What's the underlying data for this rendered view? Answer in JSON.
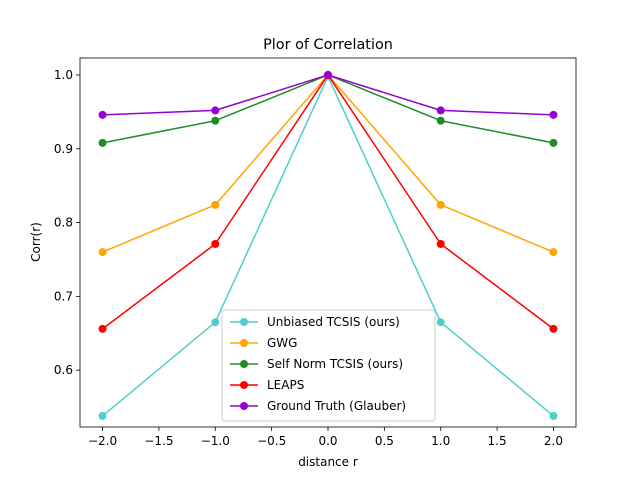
{
  "chart_data": {
    "type": "line",
    "title": "Plor of Correlation",
    "xlabel": "distance r",
    "ylabel": "Corr(r)",
    "x": [
      -2.0,
      -1.0,
      0.0,
      1.0,
      2.0
    ],
    "xlim": [
      -2.2,
      2.2
    ],
    "ylim": [
      0.523,
      1.023
    ],
    "xticks": [
      -2.0,
      -1.5,
      -1.0,
      -0.5,
      0.0,
      0.5,
      1.0,
      1.5,
      2.0
    ],
    "xtick_labels": [
      "−2.0",
      "−1.5",
      "−1.0",
      "−0.5",
      "0.0",
      "0.5",
      "1.0",
      "1.5",
      "2.0"
    ],
    "yticks": [
      0.6,
      0.7,
      0.8,
      0.9,
      1.0
    ],
    "ytick_labels": [
      "0.6",
      "0.7",
      "0.8",
      "0.9",
      "1.0"
    ],
    "grid": false,
    "legend_position": "lower center",
    "series": [
      {
        "name": "Unbiased TCSIS (ours)",
        "color": "#4ecfcb",
        "values": [
          0.538,
          0.665,
          0.998,
          0.665,
          0.538
        ]
      },
      {
        "name": "GWG",
        "color": "#ffa500",
        "values": [
          0.76,
          0.824,
          1.0,
          0.824,
          0.76
        ]
      },
      {
        "name": "Self Norm TCSIS (ours)",
        "color": "#228b22",
        "values": [
          0.908,
          0.938,
          1.0,
          0.938,
          0.908
        ]
      },
      {
        "name": "LEAPS",
        "color": "#ff0000",
        "values": [
          0.656,
          0.771,
          1.0,
          0.771,
          0.656
        ]
      },
      {
        "name": "Ground Truth (Glauber)",
        "color": "#9400d3",
        "values": [
          0.946,
          0.952,
          1.0,
          0.952,
          0.946
        ]
      }
    ]
  }
}
